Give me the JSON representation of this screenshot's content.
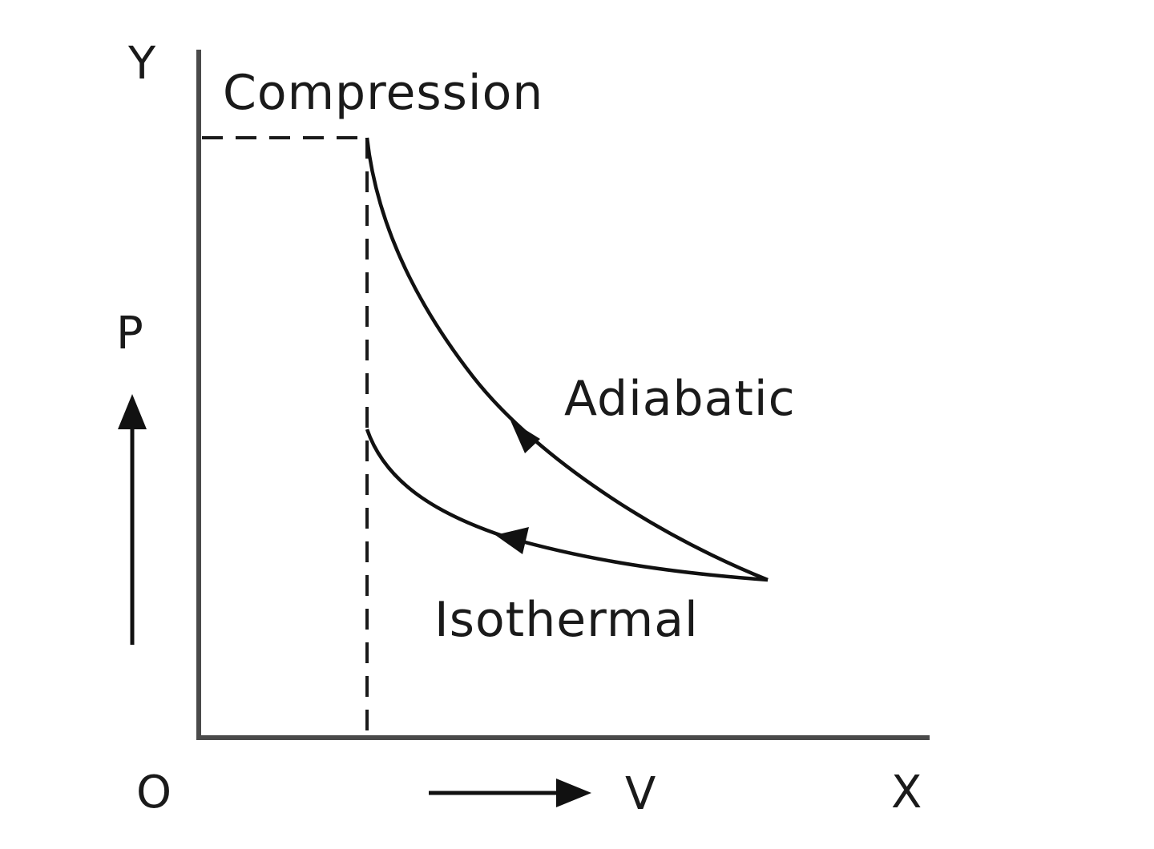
{
  "diagram": {
    "labels": {
      "y_axis": "Y",
      "x_axis": "X",
      "origin": "O",
      "pressure": "P",
      "volume": "V",
      "top_label": "Compression",
      "adiabatic": "Adiabatic",
      "isothermal": "Isothermal"
    }
  }
}
